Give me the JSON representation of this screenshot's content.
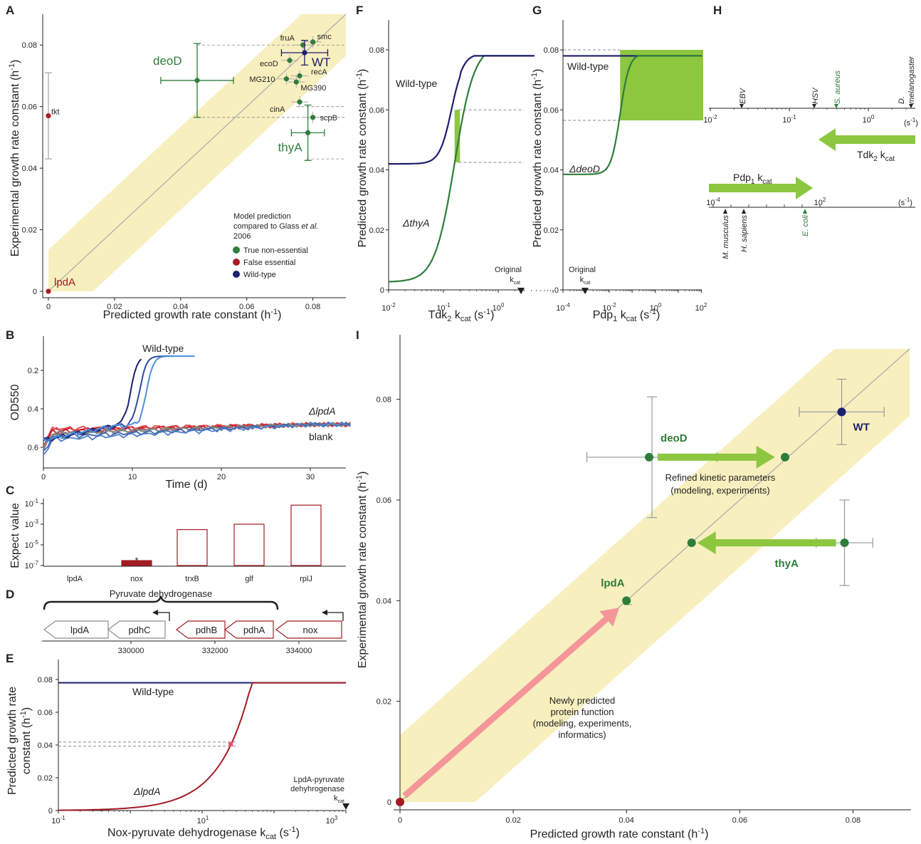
{
  "colors": {
    "green": "#2e7d3a",
    "red": "#a31c24",
    "navy": "#1c1f6e",
    "band": "#f7efbe",
    "lightgreen": "#8dc63f",
    "pink": "#f4959a",
    "grey": "#999999"
  },
  "chart_data": [
    {
      "panel": "A",
      "type": "scatter",
      "xlabel": "Predicted growth rate constant (h-1)",
      "ylabel": "Experimental growth rate constant (h-1)",
      "xlim": [
        0,
        0.09
      ],
      "ylim": [
        0,
        0.09
      ],
      "xticks": [
        "0",
        "0.02",
        "0.04",
        "0.06",
        "0.08"
      ],
      "yticks": [
        "0",
        "0.02",
        "0.04",
        "0.06",
        "0.08"
      ],
      "legend_title": "Model prediction compared to Glass et al. 2006",
      "legend": [
        {
          "label": "True non-essential",
          "color": "#2e7d3a"
        },
        {
          "label": "False essential",
          "color": "#a31c24"
        },
        {
          "label": "Wild-type",
          "color": "#1c1f6e"
        }
      ],
      "points": [
        {
          "label": "lpdA",
          "x": 0.0,
          "y": 0.0,
          "group": "false-essential"
        },
        {
          "label": "tkt",
          "x": 0.0,
          "y": 0.057,
          "yerr": 0.014,
          "group": "false-essential"
        },
        {
          "label": "deoD",
          "x": 0.045,
          "y": 0.0685,
          "xerr": 0.011,
          "yerr": 0.012,
          "group": "true-non-essential"
        },
        {
          "label": "fruA",
          "x": 0.077,
          "y": 0.08,
          "group": "true-non-essential"
        },
        {
          "label": "smc",
          "x": 0.08,
          "y": 0.081,
          "group": "true-non-essential"
        },
        {
          "label": "ecoD",
          "x": 0.073,
          "y": 0.075,
          "group": "true-non-essential"
        },
        {
          "label": "WT",
          "x": 0.0775,
          "y": 0.0775,
          "xerr": 0.007,
          "yerr": 0.004,
          "group": "wild-type"
        },
        {
          "label": "MG210",
          "x": 0.072,
          "y": 0.069,
          "group": "true-non-essential"
        },
        {
          "label": "recA",
          "x": 0.076,
          "y": 0.07,
          "group": "true-non-essential"
        },
        {
          "label": "MG390",
          "x": 0.075,
          "y": 0.068,
          "group": "true-non-essential"
        },
        {
          "label": "cinA",
          "x": 0.076,
          "y": 0.0615,
          "group": "true-non-essential"
        },
        {
          "label": "scpB",
          "x": 0.08,
          "y": 0.0565,
          "group": "true-non-essential"
        },
        {
          "label": "thyA",
          "x": 0.0785,
          "y": 0.0515,
          "xerr": 0.005,
          "yerr": 0.009,
          "group": "true-non-essential"
        }
      ]
    },
    {
      "panel": "B",
      "type": "line",
      "xlabel": "Time (d)",
      "ylabel": "OD550",
      "xlim": [
        0,
        35
      ],
      "xticks": [
        "0",
        "10",
        "20",
        "30"
      ],
      "yticks": [
        "0.2",
        "0.4",
        "0.6"
      ],
      "y_inverted": true,
      "series": [
        {
          "name": "Wild-type",
          "color": "#1c1f6e"
        },
        {
          "name": "ΔlpdA",
          "color": "#d7262c"
        },
        {
          "name": "blank",
          "color": "#777777"
        }
      ]
    },
    {
      "panel": "C",
      "type": "bar",
      "ylabel": "Expect value",
      "y_scale": "log",
      "yticks": [
        "10-7",
        "10-5",
        "10-3",
        "10-1"
      ],
      "categories": [
        "lpdA",
        "nox",
        "trxB",
        "glf",
        "rplJ"
      ],
      "values": [
        null,
        3e-07,
        0.0003,
        0.001,
        0.07
      ],
      "filled": [
        false,
        true,
        false,
        false,
        false
      ],
      "annotation": "*"
    },
    {
      "panel": "D",
      "type": "diagram",
      "bracket_label": "Pyruvate dehydrogenase",
      "genes": [
        "lpdA",
        "pdhC",
        "pdhB",
        "pdhA",
        "nox"
      ],
      "positions": [
        "330000",
        "332000",
        "334000"
      ]
    },
    {
      "panel": "E",
      "type": "line",
      "xlabel": "Nox-pyruvate dehydrogenase kcat (s-1)",
      "ylabel": "Predicted growth rate constant (h-1)",
      "x_scale": "log",
      "xticks": [
        "10-1",
        "101",
        "103"
      ],
      "yticks": [
        "0",
        "0.02",
        "0.04",
        "0.06",
        "0.08"
      ],
      "series": [
        {
          "name": "Wild-type",
          "color": "#1c1f6e"
        },
        {
          "name": "ΔlpdA",
          "color": "#a31c24"
        }
      ],
      "annotation": "LpdA-pyruvate dehyhrogenase kcat"
    },
    {
      "panel": "F",
      "type": "line",
      "xlabel": "Tdk2 kcat (s-1)",
      "ylabel": "Predicted growth rate constant (h-1)",
      "x_scale": "log",
      "xticks": [
        "10-2",
        "10-1",
        "100"
      ],
      "yticks": [
        "0",
        "0.02",
        "0.04",
        "0.06",
        "0.08"
      ],
      "series": [
        {
          "name": "Wild-type",
          "color": "#1c1f6e"
        },
        {
          "name": "ΔthyA",
          "color": "#2e7d3a"
        }
      ],
      "annotation": "Original kcat"
    },
    {
      "panel": "G",
      "type": "line",
      "xlabel": "Pdp1 kcat (s-1)",
      "ylabel": "Predicted growth rate constant (h-1)",
      "x_scale": "log",
      "xticks": [
        "10-4",
        "10-2",
        "100",
        "102"
      ],
      "yticks": [
        "0",
        "0.02",
        "0.04",
        "0.06",
        "0.08"
      ],
      "series": [
        {
          "name": "Wild-type",
          "color": "#1c1f6e"
        },
        {
          "name": "ΔdeoD",
          "color": "#2e7d3a"
        }
      ],
      "annotation": "Original kcat"
    },
    {
      "panel": "H",
      "type": "diagram",
      "axis1_ticks": [
        "10-2",
        "10-1",
        "100"
      ],
      "axis1_unit": "(s-1)",
      "axis1_organisms": [
        "EBV",
        "HSV",
        "S. aureus",
        "D. melanogaster"
      ],
      "axis1_arrow": "Tdk2 kcat",
      "axis2_ticks": [
        "10-4",
        "102"
      ],
      "axis2_unit": "(s-1)",
      "axis2_organisms": [
        "M. musculus",
        "H. sapiens",
        "E. coli"
      ],
      "axis2_arrow": "Pdp1 kcat"
    },
    {
      "panel": "I",
      "type": "scatter",
      "xlabel": "Predicted growth rate constant (h-1)",
      "ylabel": "Experimental growth rate constant (h-1)",
      "xlim": [
        0,
        0.09
      ],
      "ylim": [
        0,
        0.09
      ],
      "xticks": [
        "0",
        "0.02",
        "0.04",
        "0.06",
        "0.08"
      ],
      "yticks": [
        "0",
        "0.02",
        "0.04",
        "0.06",
        "0.08"
      ],
      "points": [
        {
          "label": "WT",
          "x": 0.078,
          "y": 0.0775
        },
        {
          "label": "deoD",
          "x": 0.044,
          "y": 0.0685
        },
        {
          "label": "thyA",
          "x": 0.0785,
          "y": 0.0515
        },
        {
          "label": "lpdA",
          "x": 0.04,
          "y": 0.04
        }
      ],
      "annotations": [
        "Refined kinetic parameters (modeling, experiments)",
        "Newly predicted protein function (modeling, experiments, informatics)"
      ]
    }
  ]
}
